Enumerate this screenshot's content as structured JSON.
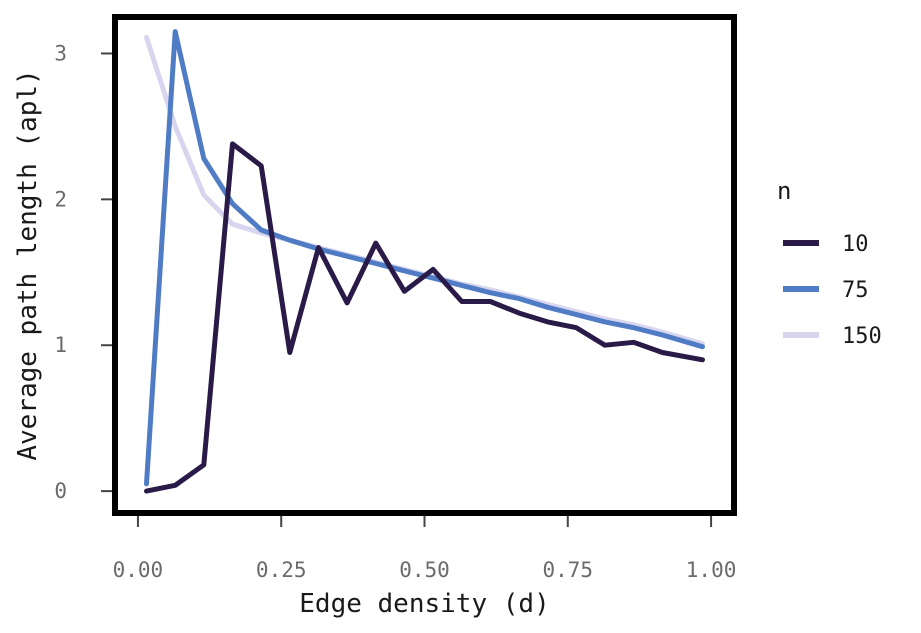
{
  "chart_data": {
    "type": "line",
    "xlabel": "Edge density (d)",
    "ylabel": "Average path length (apl)",
    "xlim": [
      -0.04,
      1.04
    ],
    "ylim": [
      -0.15,
      3.25
    ],
    "x_ticks": [
      0.0,
      0.25,
      0.5,
      0.75,
      1.0
    ],
    "x_tick_labels": [
      "0.00",
      "0.25",
      "0.50",
      "0.75",
      "1.00"
    ],
    "y_ticks": [
      0,
      1,
      2,
      3
    ],
    "y_tick_labels": [
      "0",
      "1",
      "2",
      "3"
    ],
    "grid": false,
    "legend": {
      "title": "n",
      "position": "right"
    },
    "series": [
      {
        "name": "10",
        "color": "#2a1a47",
        "x": [
          0.015,
          0.065,
          0.115,
          0.165,
          0.215,
          0.265,
          0.315,
          0.365,
          0.415,
          0.465,
          0.515,
          0.565,
          0.615,
          0.665,
          0.715,
          0.765,
          0.815,
          0.865,
          0.915,
          0.985
        ],
        "y": [
          0.0,
          0.04,
          0.18,
          2.38,
          2.23,
          0.95,
          1.67,
          1.29,
          1.7,
          1.37,
          1.52,
          1.3,
          1.3,
          1.22,
          1.16,
          1.12,
          1.0,
          1.02,
          0.95,
          0.9
        ]
      },
      {
        "name": "75",
        "color": "#4f7cc4",
        "x": [
          0.015,
          0.065,
          0.115,
          0.165,
          0.215,
          0.265,
          0.315,
          0.365,
          0.415,
          0.465,
          0.515,
          0.565,
          0.615,
          0.665,
          0.715,
          0.765,
          0.815,
          0.865,
          0.915,
          0.985
        ],
        "y": [
          0.05,
          3.15,
          2.28,
          1.97,
          1.79,
          1.72,
          1.66,
          1.61,
          1.56,
          1.51,
          1.46,
          1.41,
          1.36,
          1.32,
          1.26,
          1.21,
          1.16,
          1.12,
          1.07,
          0.99
        ]
      },
      {
        "name": "150",
        "color": "#d8d6ee",
        "x": [
          0.015,
          0.065,
          0.115,
          0.165,
          0.215,
          0.265,
          0.315,
          0.365,
          0.415,
          0.465,
          0.515,
          0.565,
          0.615,
          0.665,
          0.715,
          0.765,
          0.815,
          0.865,
          0.915,
          0.985
        ],
        "y": [
          3.11,
          2.5,
          2.03,
          1.83,
          1.77,
          1.72,
          1.67,
          1.62,
          1.57,
          1.52,
          1.47,
          1.42,
          1.38,
          1.33,
          1.28,
          1.23,
          1.18,
          1.14,
          1.09,
          1.01
        ]
      }
    ]
  }
}
